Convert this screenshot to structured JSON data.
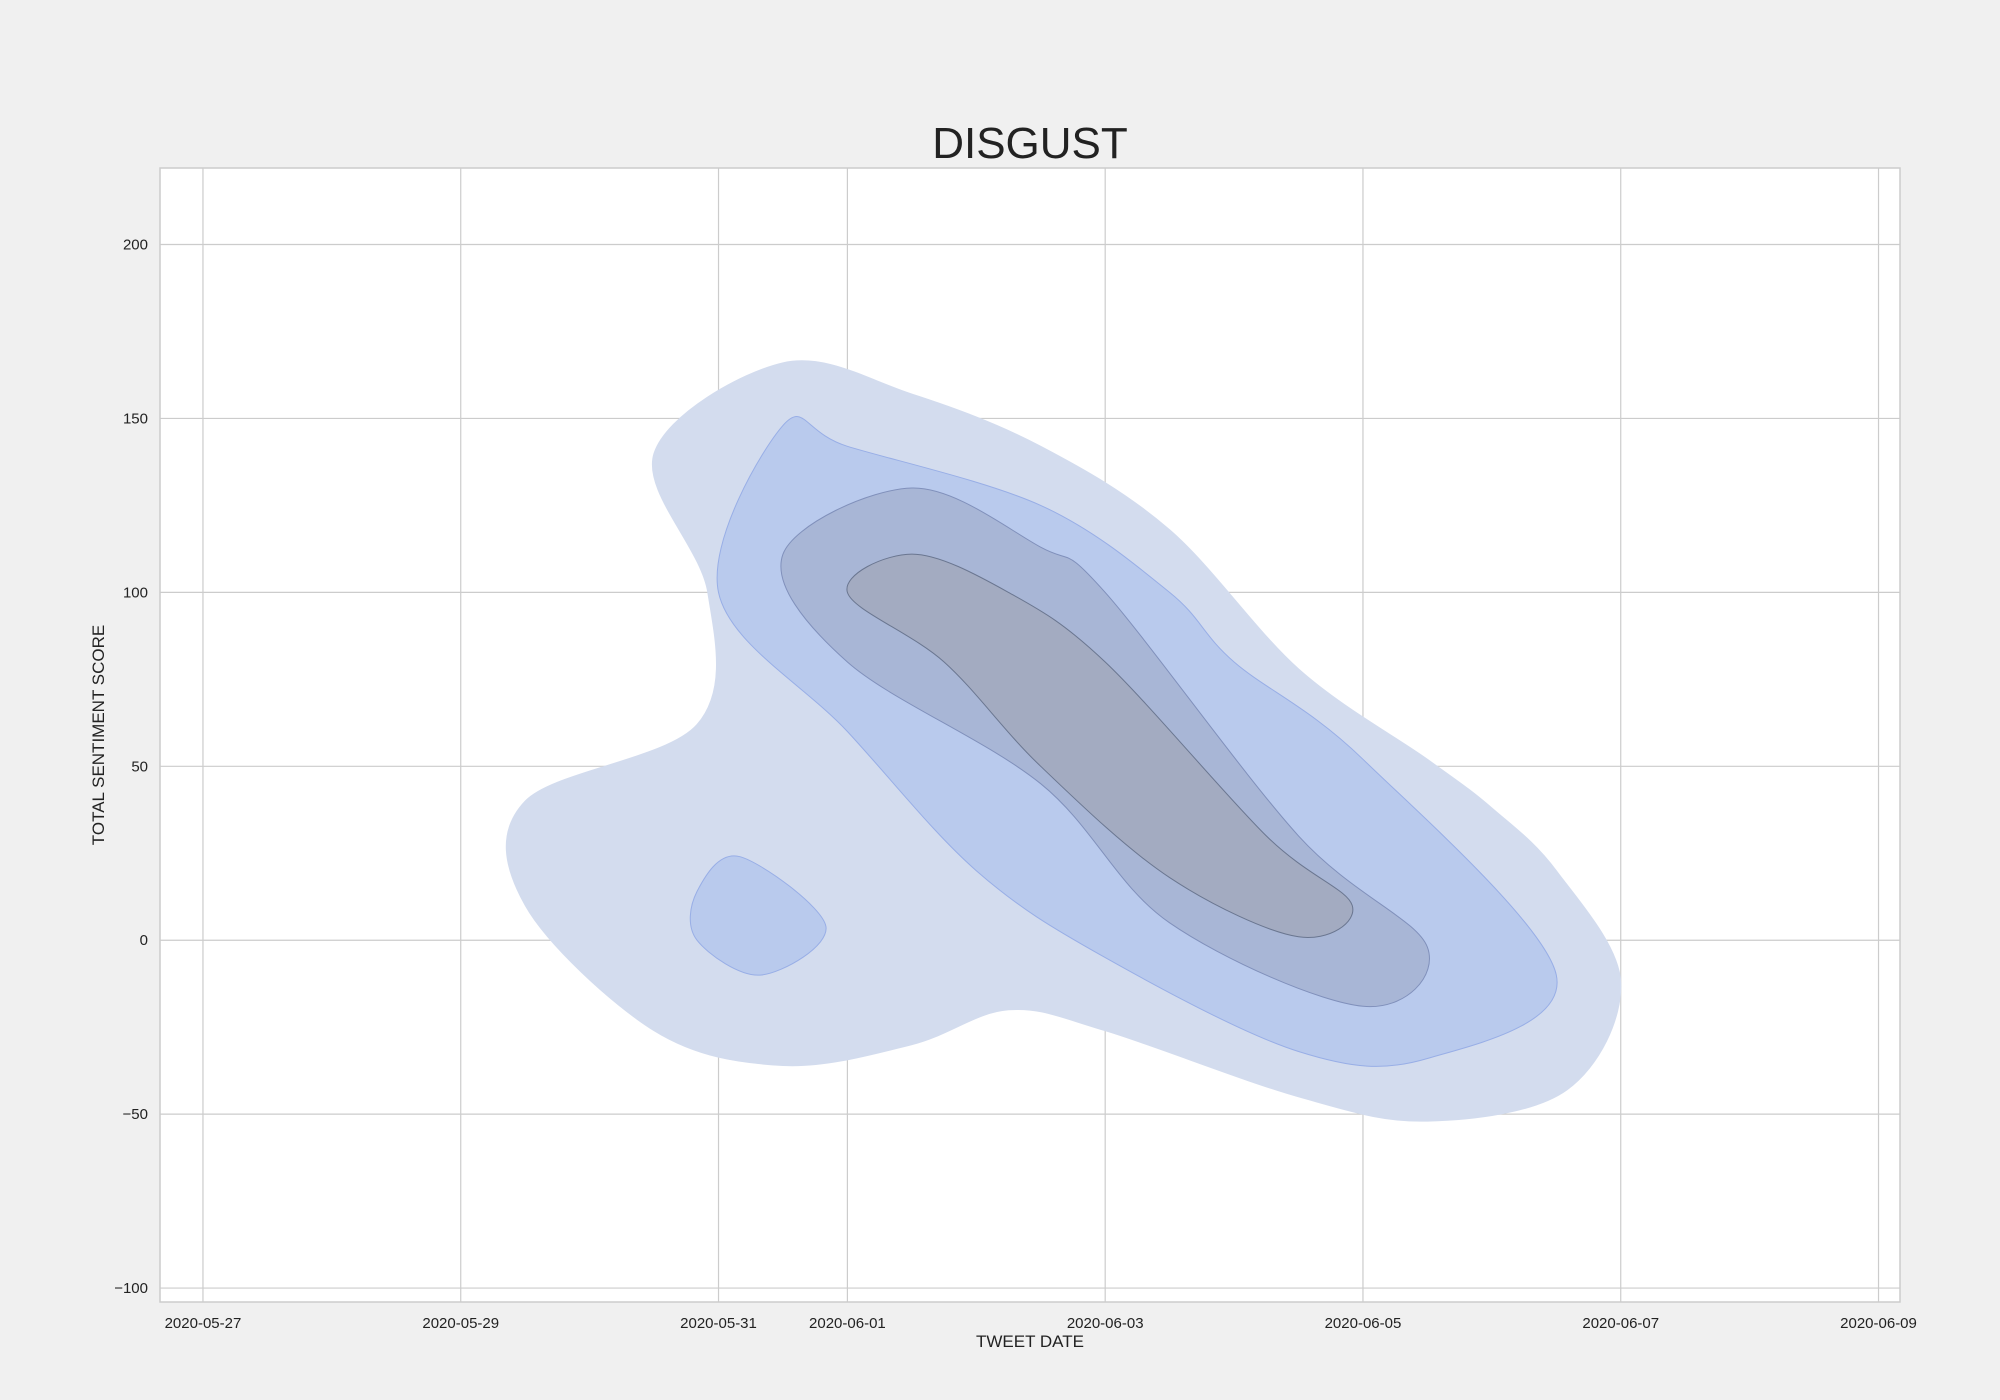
{
  "chart_data": {
    "type": "kde_contour",
    "title": "DISGUST",
    "xlabel": "TWEET DATE",
    "ylabel": "TOTAL SENTIMENT SCORE",
    "x_axis": {
      "type": "date",
      "range": [
        "2020-05-26T16:00",
        "2020-06-09T04:00"
      ],
      "ticks": [
        "2020-05-27",
        "2020-05-29",
        "2020-05-31",
        "2020-06-01",
        "2020-06-03",
        "2020-06-05",
        "2020-06-07",
        "2020-06-09"
      ]
    },
    "y_axis": {
      "range": [
        -104,
        222
      ],
      "ticks": [
        200,
        150,
        100,
        50,
        0,
        -50,
        -100
      ],
      "tick_labels": [
        "200",
        "150",
        "100",
        "50",
        "0",
        "−50",
        "−100"
      ]
    },
    "grid": true,
    "legend": "none",
    "colors": {
      "figure_background": "#f0f0f0",
      "plot_background": "#ffffff",
      "grid": "#cccccc",
      "frame": "#cccccc",
      "levels": [
        "#d3dcee",
        "#b9caed",
        "#a8b6d6",
        "#a3abc1"
      ],
      "level_edges": [
        "#d3dcee",
        "#98aee6",
        "#8090bb",
        "#6a7690"
      ]
    },
    "contours": [
      {
        "level": 1,
        "regions": [
          [
            [
              "2020-06-04T12:00",
              78
            ],
            [
              "2020-06-05T12:00",
              52
            ],
            [
              "2020-06-06T00:00",
              38
            ],
            [
              "2020-06-06T12:00",
              20
            ],
            [
              "2020-06-07T00:00",
              -12
            ],
            [
              "2020-06-06T14:00",
              -43
            ],
            [
              "2020-06-05T12:00",
              -52
            ],
            [
              "2020-06-04T12:00",
              -45
            ],
            [
              "2020-06-03T00:00",
              -26
            ],
            [
              "2020-06-02T06:00",
              -20
            ],
            [
              "2020-06-01T12:00",
              -30
            ],
            [
              "2020-06-00T12:00",
              -36
            ],
            [
              "2020-05-30T12:00",
              -26
            ],
            [
              "2020-05-29T12:00",
              10
            ],
            [
              "2020-05-29T12:00",
              40
            ],
            [
              "2020-05-30T20:00",
              62
            ],
            [
              "2020-05-30T22:00",
              100
            ],
            [
              "2020-05-30T12:00",
              140
            ],
            [
              "2020-05-31T12:00",
              166
            ],
            [
              "2020-06-01T12:00",
              157
            ],
            [
              "2020-06-02T12:00",
              142
            ],
            [
              "2020-06-03T12:00",
              118
            ]
          ]
        ]
      },
      {
        "level": 2,
        "regions": [
          [
            [
              "2020-06-04T00:00",
              80
            ],
            [
              "2020-06-05T00:00",
              52
            ],
            [
              "2020-06-06T12:00",
              -10
            ],
            [
              "2020-06-05T12:00",
              -34
            ],
            [
              "2020-06-04T12:00",
              -32
            ],
            [
              "2020-06-03T00:00",
              -5
            ],
            [
              "2020-06-02T00:00",
              20
            ],
            [
              "2020-06-01T00:00",
              60
            ],
            [
              "2020-05-31T00:00",
              100
            ],
            [
              "2020-05-31T12:00",
              148
            ],
            [
              "2020-06-01T00:00",
              142
            ],
            [
              "2020-06-02T12:00",
              125
            ],
            [
              "2020-06-03T12:00",
              100
            ]
          ],
          [
            [
              "2020-05-30T20:00",
              14
            ],
            [
              "2020-05-31T04:00",
              24
            ],
            [
              "2020-05-31T20:00",
              4
            ],
            [
              "2020-05-31T08:00",
              -10
            ],
            [
              "2020-05-30T20:00",
              0
            ]
          ]
        ]
      },
      {
        "level": 3,
        "regions": [
          [
            [
              "2020-06-03T00:00",
              100
            ],
            [
              "2020-06-04T12:00",
              30
            ],
            [
              "2020-06-05T12:00",
              -2
            ],
            [
              "2020-06-05T00:00",
              -19
            ],
            [
              "2020-06-03T12:00",
              5
            ],
            [
              "2020-06-02T12:00",
              45
            ],
            [
              "2020-06-01T00:00",
              80
            ],
            [
              "2020-05-31T12:00",
              111
            ],
            [
              "2020-06-01T12:00",
              130
            ],
            [
              "2020-06-02T12:00",
              113
            ]
          ]
        ]
      },
      {
        "level": 4,
        "regions": [
          [
            [
              "2020-06-03T00:00",
              80
            ],
            [
              "2020-06-04T06:00",
              30
            ],
            [
              "2020-06-04T22:00",
              10
            ],
            [
              "2020-06-04T12:00",
              1
            ],
            [
              "2020-06-03T12:00",
              18
            ],
            [
              "2020-06-02T12:00",
              50
            ],
            [
              "2020-06-01T18:00",
              80
            ],
            [
              "2020-06-01T00:00",
              100
            ],
            [
              "2020-06-01T12:00",
              111
            ],
            [
              "2020-06-02T06:00",
              100
            ]
          ]
        ]
      }
    ]
  }
}
